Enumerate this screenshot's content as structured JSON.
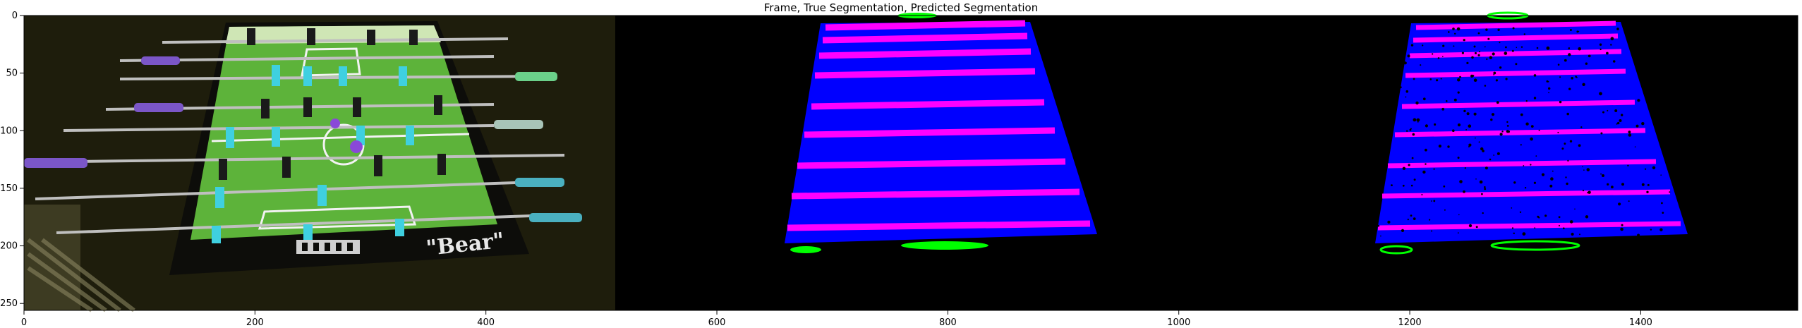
{
  "chart_data": {
    "type": "image",
    "title": "Frame, True Segmentation, Predicted Segmentation",
    "xlim": [
      0,
      1536
    ],
    "ylim": [
      256,
      0
    ],
    "x_ticks": [
      0,
      200,
      400,
      600,
      800,
      1000,
      1200,
      1400
    ],
    "y_ticks": [
      0,
      50,
      100,
      150,
      200,
      250
    ],
    "panels": [
      {
        "name": "Frame",
        "x_range": [
          0,
          512
        ]
      },
      {
        "name": "True Segmentation",
        "x_range": [
          512,
          1024
        ]
      },
      {
        "name": "Predicted Segmentation",
        "x_range": [
          1024,
          1536
        ]
      }
    ],
    "segmentation_colors": {
      "table": "#0000ff",
      "rods": "#ff00ff",
      "ball_region": "#00ff00",
      "background": "#000000"
    },
    "frame_text": "\"Bear\""
  }
}
